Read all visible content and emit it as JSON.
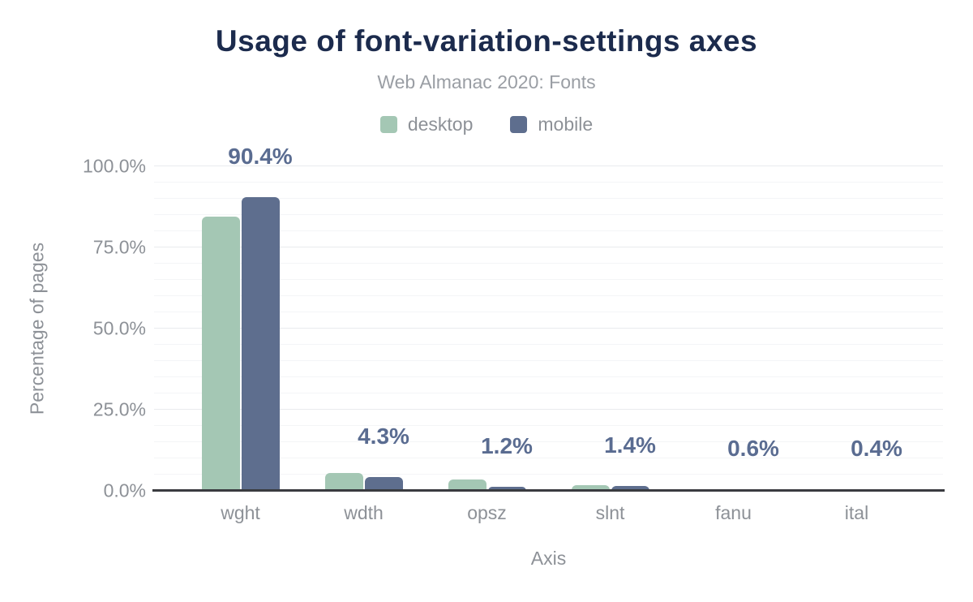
{
  "header": {
    "title": "Usage of font-variation-settings axes",
    "subtitle": "Web Almanac 2020: Fonts"
  },
  "chart_data": {
    "type": "bar",
    "title": "Usage of font-variation-settings axes",
    "subtitle": "Web Almanac 2020: Fonts",
    "xlabel": "Axis",
    "ylabel": "Percentage of pages",
    "categories": [
      "wght",
      "wdth",
      "opsz",
      "slnt",
      "fanu",
      "ital"
    ],
    "series": [
      {
        "name": "desktop",
        "color": "#a4c7b4",
        "values": [
          84.5,
          5.4,
          3.4,
          1.7,
          0.4,
          0.5
        ]
      },
      {
        "name": "mobile",
        "color": "#5e6e8e",
        "values": [
          90.4,
          4.3,
          1.2,
          1.4,
          0.6,
          0.4
        ]
      }
    ],
    "data_labels": {
      "series": "mobile",
      "labels": [
        "90.4%",
        "4.3%",
        "1.2%",
        "1.4%",
        "0.6%",
        "0.4%"
      ],
      "color": "#5a6c91"
    },
    "y_axis": {
      "min": 0,
      "max": 100,
      "major_step": 25,
      "minor_step": 5,
      "tick_labels": [
        "0.0%",
        "25.0%",
        "50.0%",
        "75.0%",
        "100.0%"
      ]
    },
    "legend": {
      "position": "top",
      "items": [
        {
          "label": "desktop",
          "color": "#a4c7b4"
        },
        {
          "label": "mobile",
          "color": "#5e6e8e"
        }
      ]
    },
    "grid": true
  },
  "colors": {
    "background": "#ffffff",
    "title": "#1c2b4d",
    "subtitle": "#9a9ea4",
    "axis_text": "#8d9197",
    "axis_line": "#3a3b40",
    "grid_major": "#e9ebee",
    "grid_minor": "#f4f5f7",
    "data_label": "#5a6c91"
  }
}
